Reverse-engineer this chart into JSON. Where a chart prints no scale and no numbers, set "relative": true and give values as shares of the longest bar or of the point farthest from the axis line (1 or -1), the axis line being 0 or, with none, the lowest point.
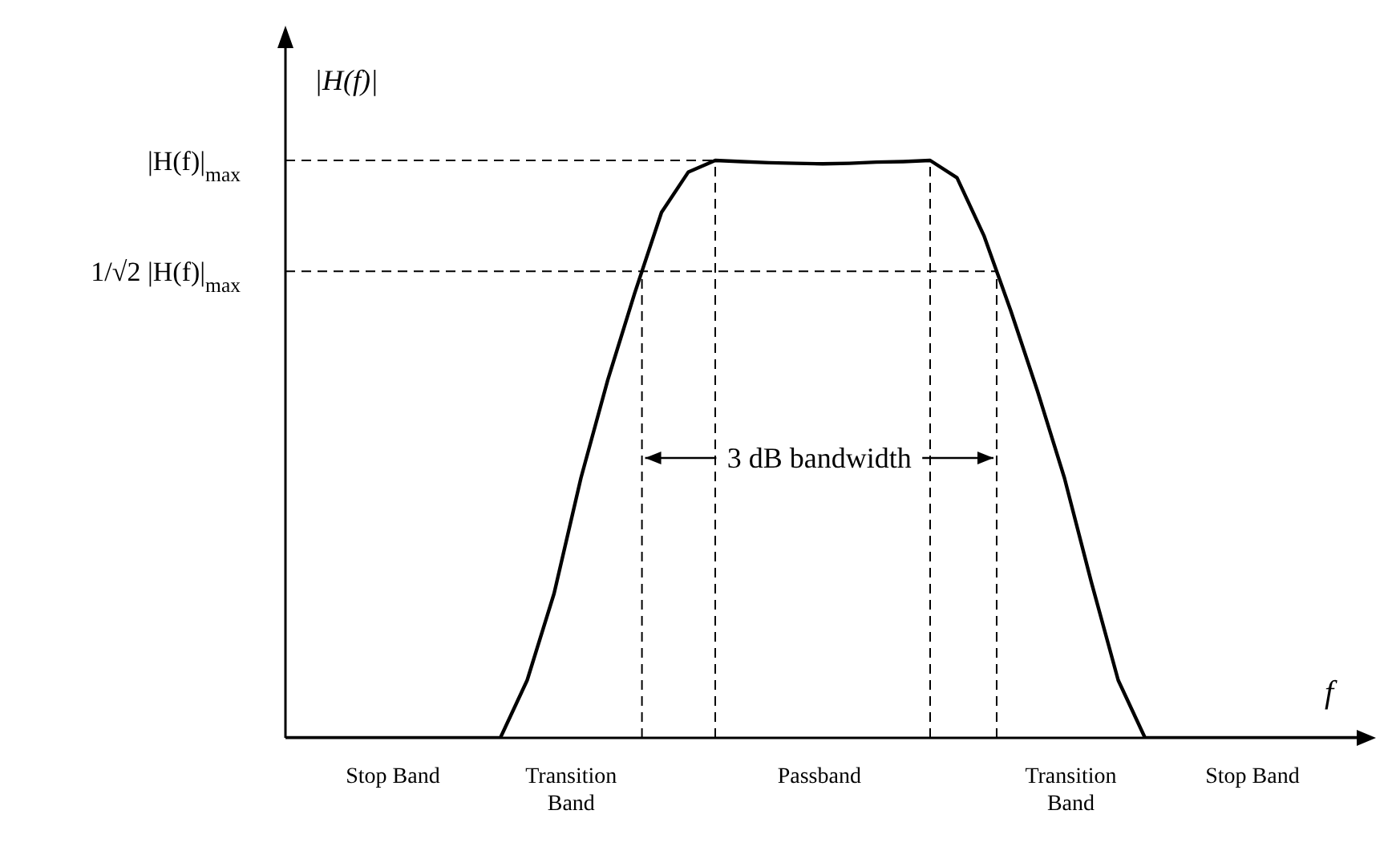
{
  "chart_data": {
    "type": "line",
    "relative": true,
    "xlabel": "f",
    "ylabel": "|H(f)|",
    "line_style": "solid",
    "marker": "none",
    "categories": [
      null,
      null,
      null,
      null,
      null,
      null,
      null,
      null,
      null,
      null,
      null,
      null,
      null,
      null,
      null,
      null,
      null,
      null,
      null,
      null,
      null,
      null,
      null,
      null,
      null,
      null,
      null,
      null,
      null,
      null,
      null,
      null,
      null,
      null,
      null,
      null,
      null,
      null,
      null,
      null,
      null
    ],
    "series": [
      {
        "color": "#000000",
        "values": [
          0,
          0,
          0,
          0,
          0,
          0,
          0,
          0,
          0,
          0.1,
          0.25,
          0.45,
          0.62,
          0.77,
          0.91,
          0.98,
          1,
          0.998,
          0.996,
          0.995,
          0.994,
          0.995,
          0.997,
          0.998,
          1,
          0.97,
          0.87,
          0.74,
          0.6,
          0.45,
          0.27,
          0.1,
          0,
          0,
          0,
          0,
          0,
          0,
          0,
          0,
          0
        ]
      }
    ],
    "ref_lines": [
      {
        "axis": "y",
        "value": 1,
        "label": "|H(f)|$_{max}$",
        "line_style": "dashed"
      },
      {
        "axis": "y",
        "value": 0.808,
        "label": "1/√2 |H(f)|$_{max}$",
        "line_style": "dashed"
      }
    ],
    "annotations": [
      "Stop Band",
      "Transition Band",
      "Passband",
      "Transition Band",
      "Stop Band",
      "3 dB bandwidth"
    ]
  }
}
